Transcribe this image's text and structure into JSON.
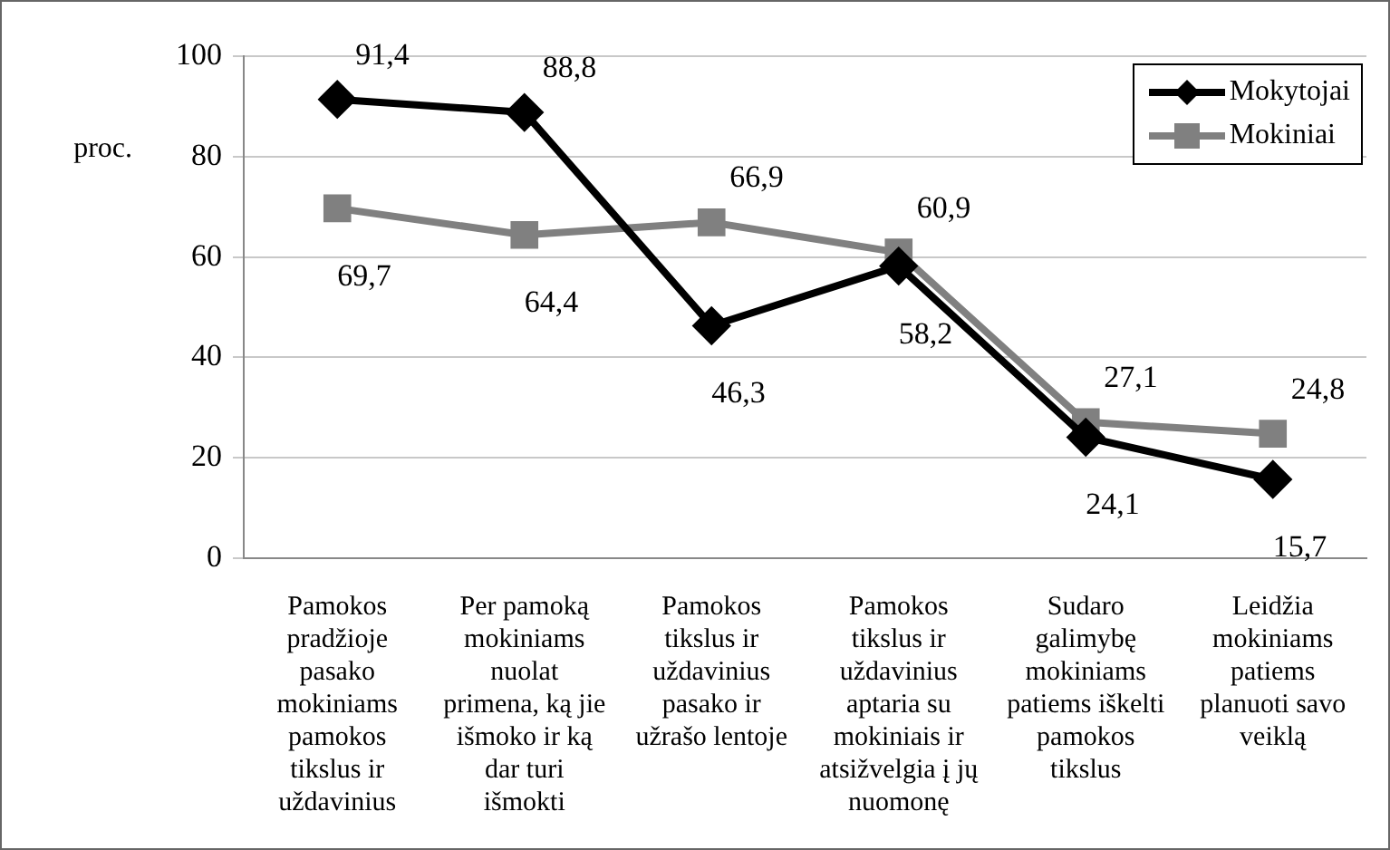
{
  "chart_data": {
    "type": "line",
    "ylabel": "proc.",
    "categories": [
      "Pamokos pradžioje pasako mokiniams pamokos tikslus ir uždavinius",
      "Per pamoką mokiniams nuolat primena, ką jie išmoko ir ką dar turi išmokti",
      "Pamokos tikslus ir uždavinius pasako ir užrašo lentoje",
      "Pamokos tikslus ir uždavinius aptaria su mokiniais ir atsižvelgia į jų nuomonę",
      "Sudaro galimybę mokiniams patiems iškelti pamokos tikslus",
      "Leidžia mokiniams patiems planuoti savo veiklą"
    ],
    "series": [
      {
        "name": "Mokytojai",
        "color": "#000000",
        "marker": "diamond",
        "values": [
          91.4,
          88.8,
          46.3,
          58.2,
          24.1,
          15.7
        ],
        "value_labels": [
          "91,4",
          "88,8",
          "46,3",
          "58,2",
          "24,1",
          "15,7"
        ]
      },
      {
        "name": "Mokiniai",
        "color": "#808080",
        "marker": "square",
        "values": [
          69.7,
          64.4,
          66.9,
          60.9,
          27.1,
          24.8
        ],
        "value_labels": [
          "69,7",
          "64,4",
          "66,9",
          "60,9",
          "27,1",
          "24,8"
        ]
      }
    ],
    "ylim": [
      0,
      100
    ],
    "yticks": [
      0,
      20,
      40,
      60,
      80,
      100
    ],
    "grid": "y",
    "legend": "top right",
    "line_style": "solid"
  }
}
